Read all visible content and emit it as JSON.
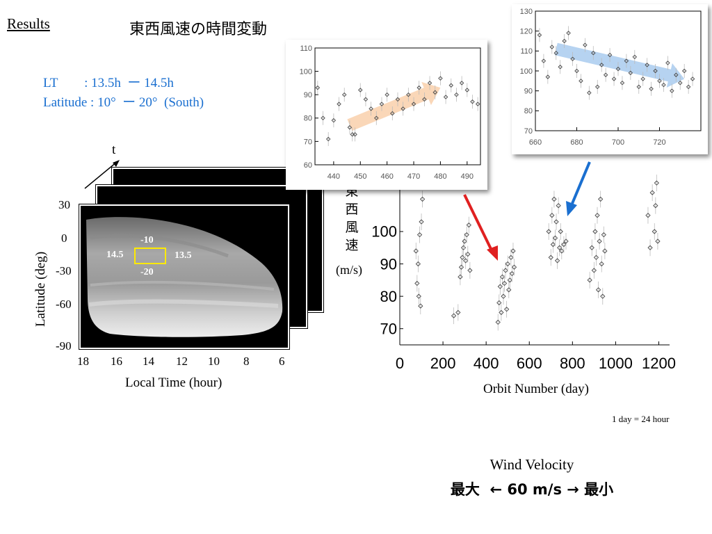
{
  "results_label": "Results",
  "title_jp": "東西風速の時間変動",
  "conditions": {
    "lt_line": "LT        : 13.5h  ー 14.5h",
    "lat_line": "Latitude : 10°  ー 20°  (South)"
  },
  "image_panel": {
    "time_axis_label": "t",
    "y_ticks": [
      "30",
      "0",
      "-30",
      "-60",
      "-90"
    ],
    "y_label": "Latitude (deg)",
    "x_ticks": [
      "18",
      "16",
      "14",
      "12",
      "10",
      "8",
      "6"
    ],
    "x_label": "Local Time (hour)",
    "box_labels": {
      "top": "-10",
      "bottom": "-20",
      "left": "14.5",
      "right": "13.5"
    },
    "box_color": "#ffea00"
  },
  "main_chart": {
    "y_label_jp": [
      "東",
      "西",
      "風",
      "速"
    ],
    "y_unit": "(m/s)",
    "x_label": "Orbit Number (day)",
    "note": "1 day = 24 hour"
  },
  "wind_velocity": {
    "title": "Wind Velocity",
    "scale": "最大  ← 60 m/s → 最小"
  },
  "colors": {
    "title_blue": "#1a6fd0",
    "arrow_red": "#e02020",
    "arrow_blue": "#1a6fd0",
    "trend_orange": "#f8c9a0",
    "trend_blue": "#9ec4ec"
  },
  "chart_data": [
    {
      "type": "scatter",
      "xlabel": "Orbit Number (day)",
      "ylabel": "東西風速 (m/s)",
      "xlim": [
        0,
        1250
      ],
      "ylim": [
        65,
        135
      ],
      "x_ticks": [
        0,
        200,
        400,
        600,
        800,
        1000,
        1200
      ],
      "y_ticks": [
        70,
        80,
        90,
        100
      ],
      "series": [
        {
          "points": [
            [
              75,
              94
            ],
            [
              80,
              84
            ],
            [
              85,
              90
            ],
            [
              88,
              80
            ],
            [
              92,
              99
            ],
            [
              96,
              77
            ],
            [
              100,
              103
            ],
            [
              105,
              110
            ],
            [
              250,
              74
            ],
            [
              270,
              75
            ],
            [
              280,
              86
            ],
            [
              285,
              89
            ],
            [
              290,
              92
            ],
            [
              295,
              95
            ],
            [
              300,
              97
            ],
            [
              305,
              91
            ],
            [
              310,
              99
            ],
            [
              315,
              93
            ],
            [
              320,
              102
            ],
            [
              325,
              88
            ],
            [
              455,
              72
            ],
            [
              460,
              78
            ],
            [
              465,
              83
            ],
            [
              470,
              75
            ],
            [
              475,
              86
            ],
            [
              480,
              80
            ],
            [
              485,
              84
            ],
            [
              490,
              88
            ],
            [
              495,
              76
            ],
            [
              500,
              90
            ],
            [
              505,
              82
            ],
            [
              510,
              85
            ],
            [
              515,
              92
            ],
            [
              520,
              87
            ],
            [
              525,
              94
            ],
            [
              530,
              89
            ],
            [
              690,
              100
            ],
            [
              700,
              92
            ],
            [
              705,
              105
            ],
            [
              710,
              96
            ],
            [
              715,
              110
            ],
            [
              720,
              98
            ],
            [
              725,
              103
            ],
            [
              730,
              91
            ],
            [
              735,
              108
            ],
            [
              740,
              95
            ],
            [
              745,
              100
            ],
            [
              750,
              94
            ],
            [
              760,
              96
            ],
            [
              770,
              97
            ],
            [
              880,
              85
            ],
            [
              890,
              95
            ],
            [
              900,
              88
            ],
            [
              905,
              100
            ],
            [
              910,
              92
            ],
            [
              915,
              105
            ],
            [
              920,
              82
            ],
            [
              925,
              97
            ],
            [
              930,
              110
            ],
            [
              935,
              90
            ],
            [
              940,
              80
            ],
            [
              945,
              99
            ],
            [
              950,
              94
            ],
            [
              1150,
              105
            ],
            [
              1160,
              95
            ],
            [
              1170,
              112
            ],
            [
              1180,
              100
            ],
            [
              1185,
              108
            ],
            [
              1190,
              115
            ],
            [
              1195,
              97
            ]
          ]
        }
      ]
    },
    {
      "type": "scatter",
      "xlim": [
        433,
        495
      ],
      "ylim": [
        60,
        110
      ],
      "x_ticks": [
        440,
        450,
        460,
        470,
        480,
        490
      ],
      "y_ticks": [
        60,
        70,
        80,
        90,
        100,
        110
      ],
      "series": [
        {
          "points": [
            [
              434,
              93
            ],
            [
              436,
              80
            ],
            [
              438,
              71
            ],
            [
              440,
              79
            ],
            [
              442,
              86
            ],
            [
              444,
              90
            ],
            [
              446,
              76
            ],
            [
              447,
              73
            ],
            [
              448,
              73
            ],
            [
              450,
              92
            ],
            [
              452,
              88
            ],
            [
              454,
              84
            ],
            [
              456,
              80
            ],
            [
              458,
              86
            ],
            [
              460,
              90
            ],
            [
              462,
              82
            ],
            [
              464,
              88
            ],
            [
              466,
              84
            ],
            [
              468,
              90
            ],
            [
              470,
              86
            ],
            [
              472,
              93
            ],
            [
              474,
              88
            ],
            [
              476,
              95
            ],
            [
              478,
              91
            ],
            [
              480,
              97
            ],
            [
              482,
              89
            ],
            [
              484,
              94
            ],
            [
              486,
              90
            ],
            [
              488,
              95
            ],
            [
              490,
              92
            ],
            [
              492,
              87
            ],
            [
              494,
              86
            ]
          ]
        }
      ]
    },
    {
      "type": "scatter",
      "xlim": [
        660,
        740
      ],
      "ylim": [
        70,
        130
      ],
      "x_ticks": [
        660,
        680,
        700,
        720
      ],
      "y_ticks": [
        70,
        80,
        90,
        100,
        110,
        120,
        130
      ],
      "series": [
        {
          "points": [
            [
              662,
              118
            ],
            [
              664,
              105
            ],
            [
              666,
              97
            ],
            [
              668,
              112
            ],
            [
              670,
              109
            ],
            [
              672,
              102
            ],
            [
              674,
              115
            ],
            [
              676,
              119
            ],
            [
              678,
              106
            ],
            [
              680,
              100
            ],
            [
              682,
              95
            ],
            [
              684,
              113
            ],
            [
              686,
              89
            ],
            [
              688,
              109
            ],
            [
              690,
              92
            ],
            [
              692,
              103
            ],
            [
              694,
              98
            ],
            [
              696,
              108
            ],
            [
              698,
              96
            ],
            [
              700,
              101
            ],
            [
              702,
              94
            ],
            [
              704,
              105
            ],
            [
              706,
              99
            ],
            [
              708,
              107
            ],
            [
              710,
              92
            ],
            [
              712,
              96
            ],
            [
              714,
              103
            ],
            [
              716,
              91
            ],
            [
              718,
              100
            ],
            [
              720,
              95
            ],
            [
              722,
              93
            ],
            [
              724,
              104
            ],
            [
              726,
              90
            ],
            [
              728,
              98
            ],
            [
              730,
              94
            ],
            [
              732,
              100
            ],
            [
              734,
              92
            ],
            [
              736,
              96
            ]
          ]
        }
      ]
    }
  ]
}
